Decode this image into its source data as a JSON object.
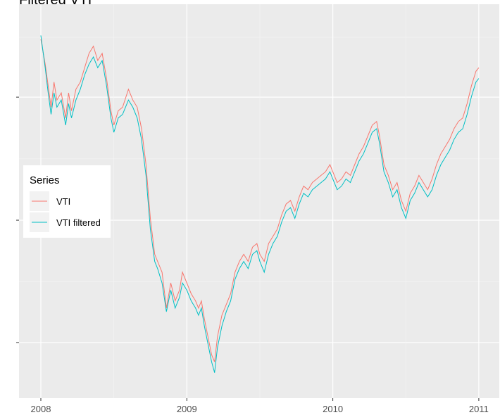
{
  "chart_data": {
    "type": "line",
    "title": "Filtered VTI",
    "xlabel": "",
    "ylabel": "",
    "x_ticks": [
      "2008",
      "2009",
      "2010",
      "2011"
    ],
    "x_range": [
      2008.0,
      2011.0
    ],
    "y_range": [
      0,
      100
    ],
    "y_tick_labels_visible": false,
    "grid": true,
    "legend": {
      "title": "Series",
      "placement": "left"
    },
    "colors": {
      "panel": "#ebebeb",
      "grid_major": "#ffffff",
      "grid_minor": "#f5f5f5"
    },
    "series": [
      {
        "name": "VTI",
        "color": "#F8766D",
        "points": [
          [
            2008.0,
            95
          ],
          [
            2008.03,
            88
          ],
          [
            2008.05,
            82
          ],
          [
            2008.07,
            76
          ],
          [
            2008.09,
            83
          ],
          [
            2008.11,
            78
          ],
          [
            2008.14,
            80
          ],
          [
            2008.17,
            73
          ],
          [
            2008.19,
            80
          ],
          [
            2008.21,
            75
          ],
          [
            2008.24,
            81
          ],
          [
            2008.27,
            83
          ],
          [
            2008.3,
            87
          ],
          [
            2008.33,
            91
          ],
          [
            2008.36,
            93
          ],
          [
            2008.39,
            89
          ],
          [
            2008.42,
            91
          ],
          [
            2008.45,
            84
          ],
          [
            2008.48,
            75
          ],
          [
            2008.5,
            71
          ],
          [
            2008.53,
            75
          ],
          [
            2008.56,
            76
          ],
          [
            2008.6,
            81
          ],
          [
            2008.63,
            78
          ],
          [
            2008.66,
            76
          ],
          [
            2008.69,
            70
          ],
          [
            2008.72,
            60
          ],
          [
            2008.75,
            45
          ],
          [
            2008.78,
            35
          ],
          [
            2008.8,
            33
          ],
          [
            2008.83,
            30
          ],
          [
            2008.86,
            20
          ],
          [
            2008.89,
            27
          ],
          [
            2008.92,
            22
          ],
          [
            2008.95,
            25
          ],
          [
            2008.97,
            30
          ],
          [
            2009.0,
            27
          ],
          [
            2009.03,
            24
          ],
          [
            2009.06,
            22
          ],
          [
            2009.08,
            20
          ],
          [
            2009.1,
            22
          ],
          [
            2009.12,
            17
          ],
          [
            2009.14,
            13
          ],
          [
            2009.17,
            7
          ],
          [
            2009.19,
            5
          ],
          [
            2009.21,
            12
          ],
          [
            2009.24,
            18
          ],
          [
            2009.27,
            21
          ],
          [
            2009.3,
            24
          ],
          [
            2009.33,
            30
          ],
          [
            2009.36,
            33
          ],
          [
            2009.39,
            35
          ],
          [
            2009.42,
            33
          ],
          [
            2009.45,
            37
          ],
          [
            2009.48,
            38
          ],
          [
            2009.5,
            35
          ],
          [
            2009.53,
            33
          ],
          [
            2009.56,
            38
          ],
          [
            2009.59,
            40
          ],
          [
            2009.62,
            42
          ],
          [
            2009.65,
            46
          ],
          [
            2009.68,
            49
          ],
          [
            2009.71,
            50
          ],
          [
            2009.74,
            47
          ],
          [
            2009.77,
            51
          ],
          [
            2009.8,
            54
          ],
          [
            2009.83,
            53
          ],
          [
            2009.86,
            55
          ],
          [
            2009.89,
            56
          ],
          [
            2009.92,
            57
          ],
          [
            2009.95,
            58
          ],
          [
            2009.98,
            60
          ],
          [
            2010.0,
            58
          ],
          [
            2010.03,
            55
          ],
          [
            2010.06,
            56
          ],
          [
            2010.09,
            58
          ],
          [
            2010.12,
            57
          ],
          [
            2010.15,
            60
          ],
          [
            2010.18,
            63
          ],
          [
            2010.21,
            65
          ],
          [
            2010.24,
            68
          ],
          [
            2010.27,
            71
          ],
          [
            2010.3,
            72
          ],
          [
            2010.32,
            68
          ],
          [
            2010.35,
            60
          ],
          [
            2010.38,
            57
          ],
          [
            2010.41,
            53
          ],
          [
            2010.44,
            55
          ],
          [
            2010.47,
            50
          ],
          [
            2010.5,
            47
          ],
          [
            2010.53,
            52
          ],
          [
            2010.56,
            54
          ],
          [
            2010.59,
            57
          ],
          [
            2010.62,
            55
          ],
          [
            2010.65,
            53
          ],
          [
            2010.68,
            56
          ],
          [
            2010.71,
            60
          ],
          [
            2010.74,
            63
          ],
          [
            2010.77,
            65
          ],
          [
            2010.8,
            67
          ],
          [
            2010.83,
            70
          ],
          [
            2010.86,
            72
          ],
          [
            2010.89,
            73
          ],
          [
            2010.92,
            77
          ],
          [
            2010.95,
            82
          ],
          [
            2010.98,
            86
          ],
          [
            2011.0,
            87
          ]
        ]
      },
      {
        "name": "VTI filtered",
        "color": "#00BFC4",
        "points": [
          [
            2008.0,
            96
          ],
          [
            2008.03,
            87
          ],
          [
            2008.05,
            80
          ],
          [
            2008.07,
            74
          ],
          [
            2008.09,
            80
          ],
          [
            2008.11,
            76
          ],
          [
            2008.14,
            78
          ],
          [
            2008.17,
            71
          ],
          [
            2008.19,
            77
          ],
          [
            2008.21,
            73
          ],
          [
            2008.24,
            78
          ],
          [
            2008.27,
            81
          ],
          [
            2008.3,
            85
          ],
          [
            2008.33,
            88
          ],
          [
            2008.36,
            90
          ],
          [
            2008.39,
            87
          ],
          [
            2008.42,
            89
          ],
          [
            2008.45,
            82
          ],
          [
            2008.48,
            73
          ],
          [
            2008.5,
            69
          ],
          [
            2008.53,
            73
          ],
          [
            2008.56,
            74
          ],
          [
            2008.6,
            78
          ],
          [
            2008.63,
            76
          ],
          [
            2008.66,
            73
          ],
          [
            2008.69,
            67
          ],
          [
            2008.72,
            57
          ],
          [
            2008.75,
            42
          ],
          [
            2008.78,
            33
          ],
          [
            2008.8,
            31
          ],
          [
            2008.83,
            27
          ],
          [
            2008.86,
            19
          ],
          [
            2008.89,
            25
          ],
          [
            2008.92,
            20
          ],
          [
            2008.95,
            23
          ],
          [
            2008.97,
            27
          ],
          [
            2009.0,
            25
          ],
          [
            2009.03,
            22
          ],
          [
            2009.06,
            20
          ],
          [
            2009.08,
            18
          ],
          [
            2009.1,
            20
          ],
          [
            2009.12,
            15
          ],
          [
            2009.14,
            11
          ],
          [
            2009.17,
            5
          ],
          [
            2009.19,
            2
          ],
          [
            2009.21,
            9
          ],
          [
            2009.24,
            15
          ],
          [
            2009.27,
            19
          ],
          [
            2009.3,
            22
          ],
          [
            2009.33,
            28
          ],
          [
            2009.36,
            31
          ],
          [
            2009.39,
            33
          ],
          [
            2009.42,
            31
          ],
          [
            2009.45,
            35
          ],
          [
            2009.48,
            36
          ],
          [
            2009.5,
            33
          ],
          [
            2009.53,
            30
          ],
          [
            2009.56,
            35
          ],
          [
            2009.59,
            38
          ],
          [
            2009.62,
            40
          ],
          [
            2009.65,
            44
          ],
          [
            2009.68,
            47
          ],
          [
            2009.71,
            48
          ],
          [
            2009.74,
            45
          ],
          [
            2009.77,
            49
          ],
          [
            2009.8,
            52
          ],
          [
            2009.83,
            51
          ],
          [
            2009.86,
            53
          ],
          [
            2009.89,
            54
          ],
          [
            2009.92,
            55
          ],
          [
            2009.95,
            56
          ],
          [
            2009.98,
            58
          ],
          [
            2010.0,
            56
          ],
          [
            2010.03,
            53
          ],
          [
            2010.06,
            54
          ],
          [
            2010.09,
            56
          ],
          [
            2010.12,
            55
          ],
          [
            2010.15,
            58
          ],
          [
            2010.18,
            61
          ],
          [
            2010.21,
            63
          ],
          [
            2010.24,
            66
          ],
          [
            2010.27,
            69
          ],
          [
            2010.3,
            70
          ],
          [
            2010.32,
            66
          ],
          [
            2010.35,
            58
          ],
          [
            2010.38,
            55
          ],
          [
            2010.41,
            51
          ],
          [
            2010.44,
            53
          ],
          [
            2010.47,
            48
          ],
          [
            2010.5,
            45
          ],
          [
            2010.53,
            50
          ],
          [
            2010.56,
            52
          ],
          [
            2010.59,
            55
          ],
          [
            2010.62,
            53
          ],
          [
            2010.65,
            51
          ],
          [
            2010.68,
            53
          ],
          [
            2010.71,
            57
          ],
          [
            2010.74,
            60
          ],
          [
            2010.77,
            62
          ],
          [
            2010.8,
            64
          ],
          [
            2010.83,
            67
          ],
          [
            2010.86,
            69
          ],
          [
            2010.89,
            70
          ],
          [
            2010.92,
            74
          ],
          [
            2010.95,
            79
          ],
          [
            2010.98,
            83
          ],
          [
            2011.0,
            84
          ]
        ]
      }
    ]
  }
}
